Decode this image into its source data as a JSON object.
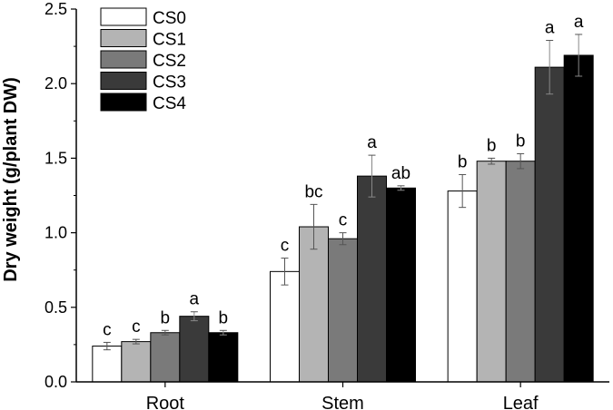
{
  "chart_data": {
    "type": "bar",
    "title": "",
    "xlabel": "",
    "ylabel": "Dry weight (g/plant DW)",
    "ylim": [
      0,
      2.5
    ],
    "yticks": [
      "0.0",
      "0.5",
      "1.0",
      "1.5",
      "2.0",
      "2.5"
    ],
    "ytick_values": [
      0,
      0.5,
      1.0,
      1.5,
      2.0,
      2.5
    ],
    "categories": [
      "Root",
      "Stem",
      "Leaf"
    ],
    "legend_position": "top-left",
    "series": [
      {
        "name": "CS0",
        "color": "#ffffff",
        "values": [
          0.24,
          0.74,
          1.28
        ],
        "errors": [
          0.025,
          0.09,
          0.11
        ],
        "sig": [
          "c",
          "c",
          "b"
        ]
      },
      {
        "name": "CS1",
        "color": "#b4b4b4",
        "values": [
          0.27,
          1.04,
          1.48
        ],
        "errors": [
          0.015,
          0.15,
          0.02
        ],
        "sig": [
          "c",
          "bc",
          "b"
        ]
      },
      {
        "name": "CS2",
        "color": "#7a7a7a",
        "values": [
          0.33,
          0.96,
          1.48
        ],
        "errors": [
          0.015,
          0.04,
          0.05
        ],
        "sig": [
          "b",
          "c",
          "b"
        ]
      },
      {
        "name": "CS3",
        "color": "#3a3a3a",
        "values": [
          0.44,
          1.38,
          2.11
        ],
        "errors": [
          0.03,
          0.14,
          0.18
        ],
        "sig": [
          "a",
          "a",
          "a"
        ]
      },
      {
        "name": "CS4",
        "color": "#000000",
        "values": [
          0.33,
          1.3,
          2.19
        ],
        "errors": [
          0.015,
          0.015,
          0.14
        ],
        "sig": [
          "b",
          "ab",
          "a"
        ]
      }
    ]
  }
}
